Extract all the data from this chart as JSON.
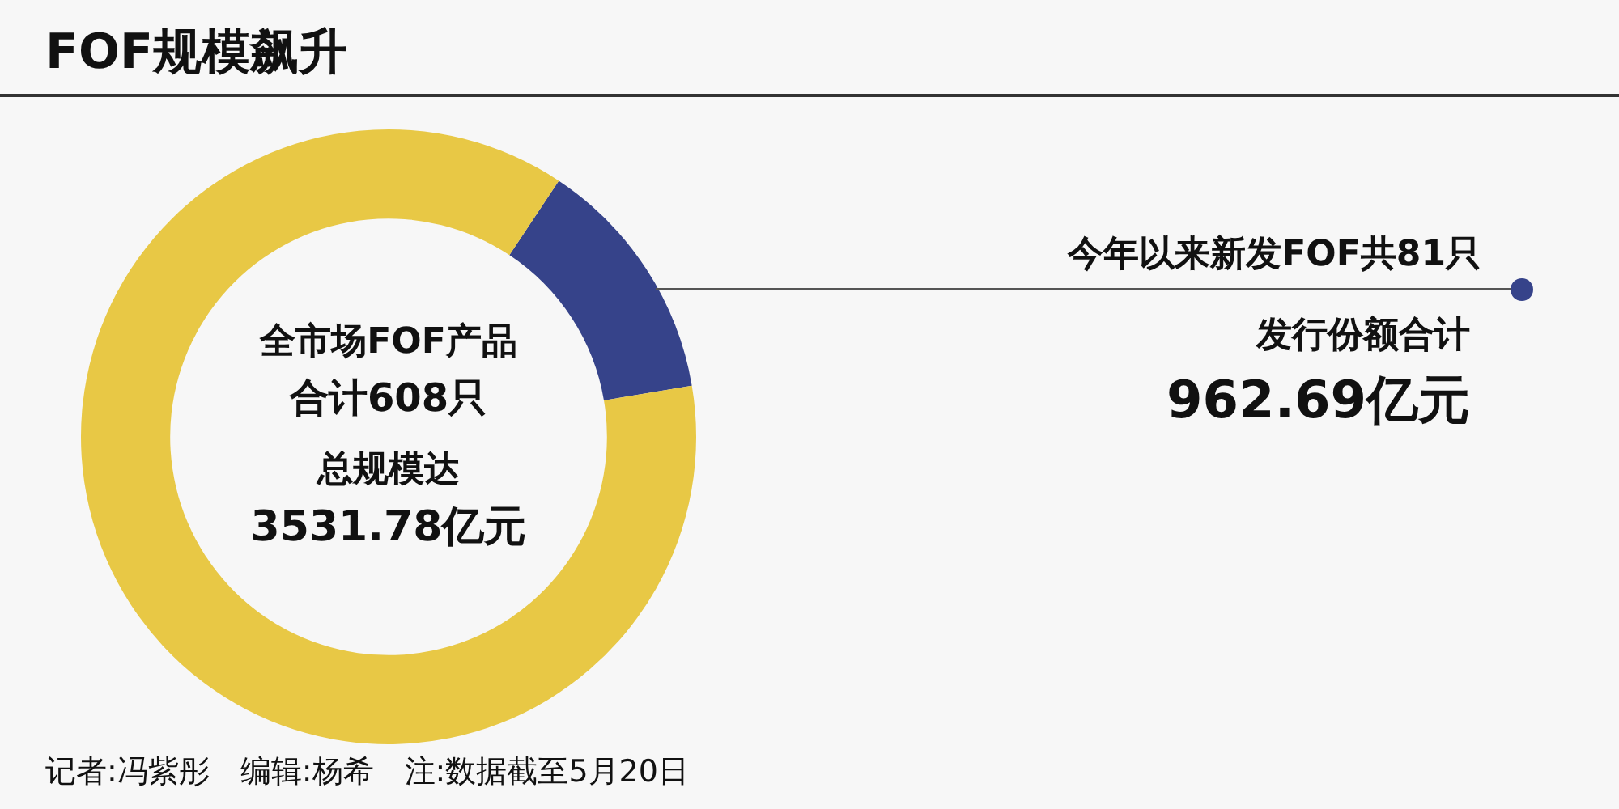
{
  "chart_data": {
    "type": "donut",
    "title": "FOF规模飙升",
    "categories": [
      null,
      null
    ],
    "values": [
      13,
      87
    ],
    "colors": [
      "#36438a",
      "#e8c845"
    ],
    "annotations": [
      "全市场FOF产品",
      "合计608只",
      "总规模达",
      "3531.78亿元",
      "今年以来新发FOF共81只",
      "发行份额合计",
      "962.69亿元",
      "记者:冯紫彤　编辑:杨希　注:数据截至5月20日"
    ],
    "legend": false
  }
}
